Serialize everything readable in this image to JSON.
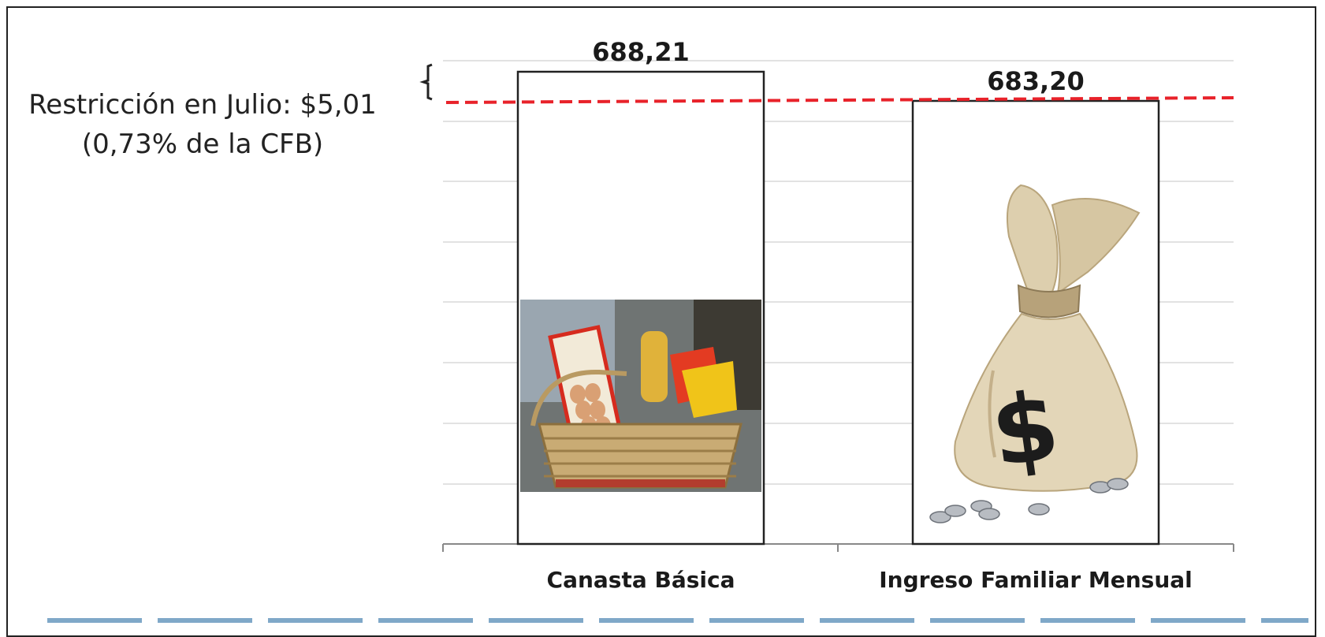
{
  "annotation": {
    "line1": "Restricción en Julio: $5,01",
    "line2": "(0,73% de la CFB)"
  },
  "chart_data": {
    "type": "bar",
    "categories": [
      "Canasta Básica",
      "Ingreso Familiar Mensual"
    ],
    "values": [
      688.21,
      683.2
    ],
    "value_labels": [
      "688,21",
      "683,20"
    ],
    "reference_line": {
      "value": 683.2,
      "style": "dashed",
      "color": "#e8222a"
    },
    "axis_break": true,
    "grid": true,
    "colors": {
      "bar_fill": "#ffffff",
      "bar_stroke": "#222222",
      "grid": "#d9d9d9",
      "axis": "#888888"
    },
    "bar_images": [
      "basket-icon",
      "money-bag-icon"
    ]
  }
}
